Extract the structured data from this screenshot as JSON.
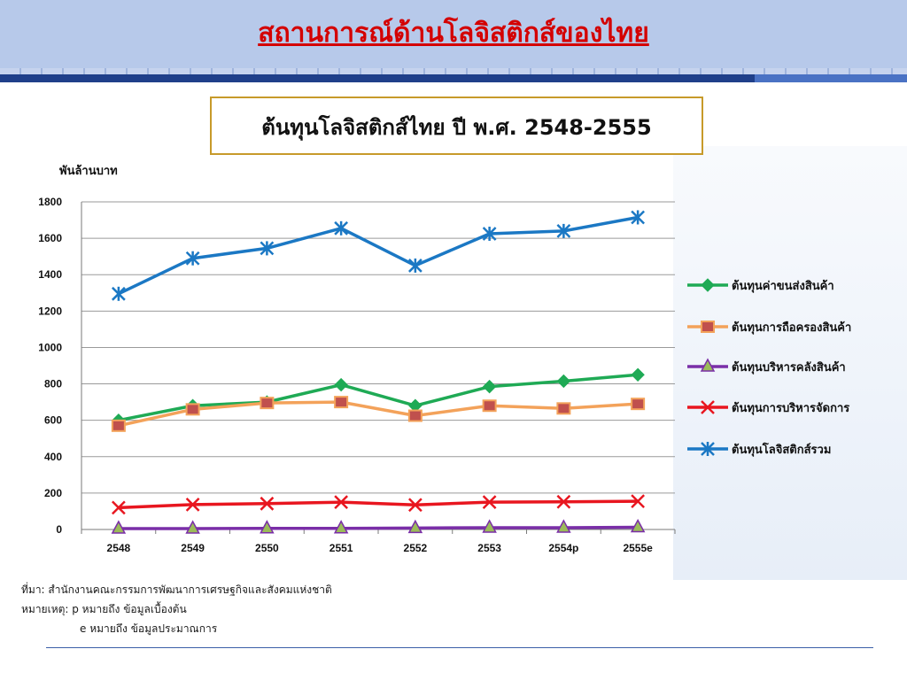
{
  "header": {
    "title": "สถานการณ์ด้านโลจิสติกส์ของไทย"
  },
  "subtitle": "ต้นทุนโลจิสติกส์ไทย ปี พ.ศ. 2548-2555",
  "notes": {
    "source": "ที่มา: สำนักงานคณะกรรมการพัฒนาการเศรษฐกิจและสังคมแห่งชาติ",
    "remark": "หมายเหตุ: p หมายถึง ข้อมูลเบื้องต้น",
    "remark2": "e หมายถึง ข้อมูลประมาณการ"
  },
  "chart_data": {
    "type": "line",
    "ylabel": "พันล้านบาท",
    "xlabel": "",
    "ylim": [
      0,
      1800
    ],
    "yticks": [
      0,
      200,
      400,
      600,
      800,
      1000,
      1200,
      1400,
      1600,
      1800
    ],
    "grid": true,
    "legend_position": "right",
    "categories": [
      "2548",
      "2549",
      "2550",
      "2551",
      "2552",
      "2553",
      "2554p",
      "2555e"
    ],
    "series": [
      {
        "name": "ต้นทุนค่าขนส่งสินค้า",
        "color": "#1faa55",
        "marker": "diamond",
        "values": [
          600,
          680,
          700,
          795,
          680,
          785,
          815,
          850
        ]
      },
      {
        "name": "ต้นทุนการถือครองสินค้า",
        "color": "#f3a25a",
        "marker": "square",
        "values": [
          570,
          660,
          695,
          700,
          625,
          680,
          665,
          690
        ]
      },
      {
        "name": "ต้นทุนบริหารคลังสินค้า",
        "color": "#7a2ea8",
        "marker": "triangle",
        "values": [
          5,
          5,
          6,
          6,
          8,
          10,
          10,
          12
        ]
      },
      {
        "name": "ต้นทุนการบริหารจัดการ",
        "color": "#e8161f",
        "marker": "x",
        "values": [
          120,
          137,
          142,
          150,
          135,
          150,
          152,
          155
        ]
      },
      {
        "name": "ต้นทุนโลจิสติกส์รวม",
        "color": "#1b78c4",
        "marker": "star",
        "values": [
          1295,
          1490,
          1545,
          1655,
          1450,
          1625,
          1640,
          1715
        ]
      }
    ]
  }
}
